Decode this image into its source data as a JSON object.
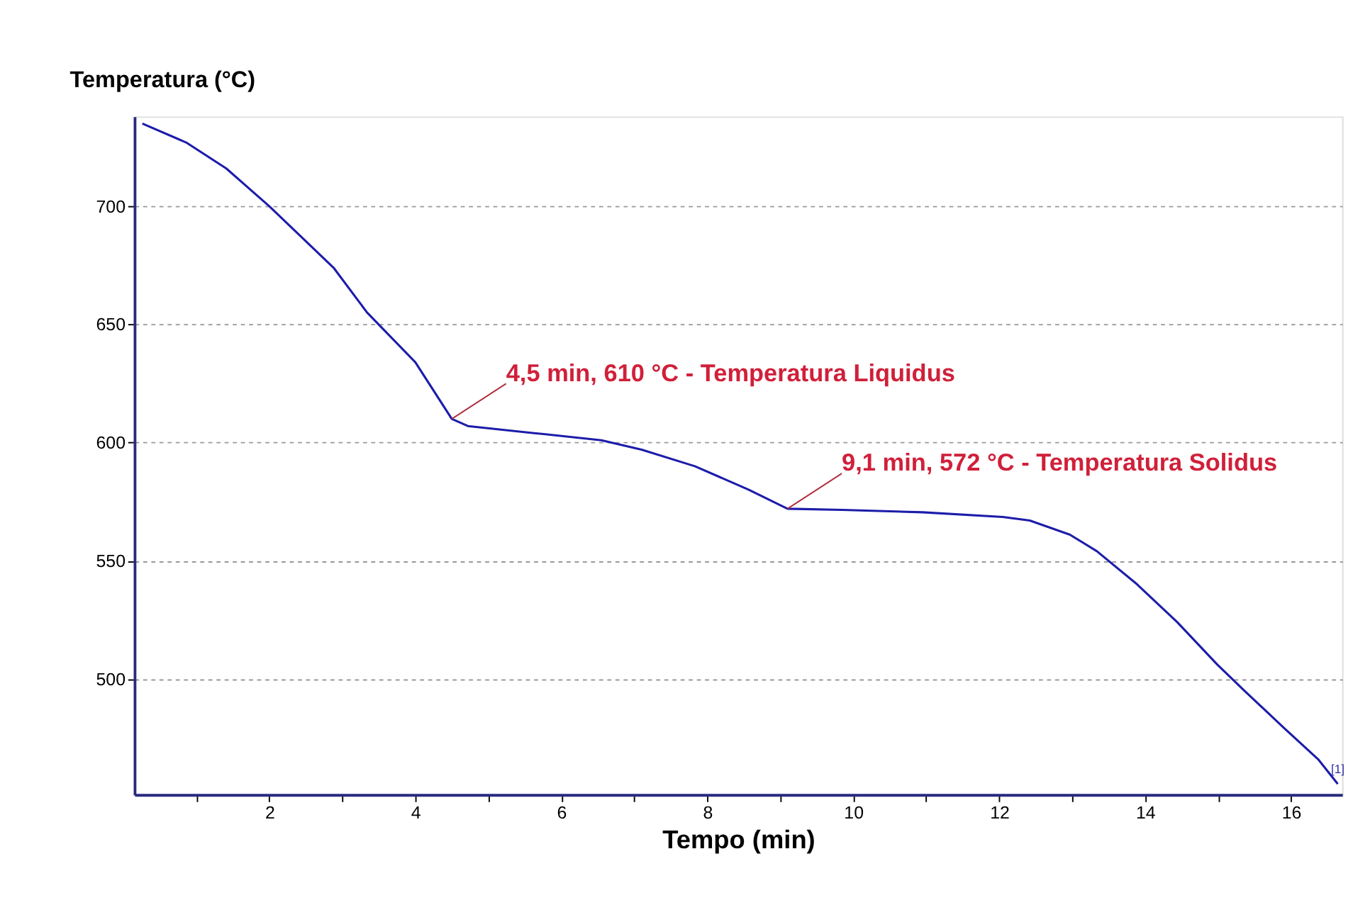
{
  "chart_data": {
    "type": "line",
    "xlabel": "Tempo (min)",
    "ylabel": "Temperatura (°C)",
    "x": [
      0.26,
      0.86,
      1.41,
      2,
      2.88,
      3.34,
      4,
      4.5,
      4.72,
      5.63,
      6.55,
      7.1,
      7.83,
      8.57,
      9.1,
      9.85,
      10.95,
      12.05,
      12.42,
      12.97,
      13.34,
      13.89,
      14.44,
      14.99,
      15.36,
      15.91,
      16.37,
      16.64
    ],
    "series": [
      {
        "color": "#1c1caa",
        "values": [
          735,
          727,
          716,
          700,
          674,
          655,
          634,
          610,
          607,
          604,
          601,
          597,
          590,
          580,
          572,
          571.5,
          570.5,
          568.5,
          567,
          561,
          554,
          540,
          524,
          506,
          495,
          479,
          466,
          455.5
        ]
      }
    ],
    "xlim": [
      0.15,
      16.7
    ],
    "ylim": [
      451,
      738
    ],
    "xticks": [
      {
        "value": 1,
        "label": null
      },
      2,
      {
        "value": 3,
        "label": null
      },
      4,
      {
        "value": 5,
        "label": null
      },
      6,
      {
        "value": 7,
        "label": null
      },
      8,
      {
        "value": 9,
        "label": null
      },
      10,
      {
        "value": 11,
        "label": null
      },
      12,
      {
        "value": 13,
        "label": null
      },
      14,
      {
        "value": 15,
        "label": null
      },
      16
    ],
    "yticks": [
      500,
      550,
      600,
      650,
      700
    ],
    "grid": "y",
    "marker": "none",
    "line_style": "solid",
    "annotations": [
      {
        "text": "4,5 min, 610 °C - Temperatura Liquidus",
        "x": 4.5,
        "y": 610
      },
      {
        "text": "9,1 min, 572 °C - Temperatura Solidus",
        "x": 9.1,
        "y": 572
      },
      {
        "text": "[1]",
        "x": 16.64,
        "y": 455.5
      }
    ]
  }
}
